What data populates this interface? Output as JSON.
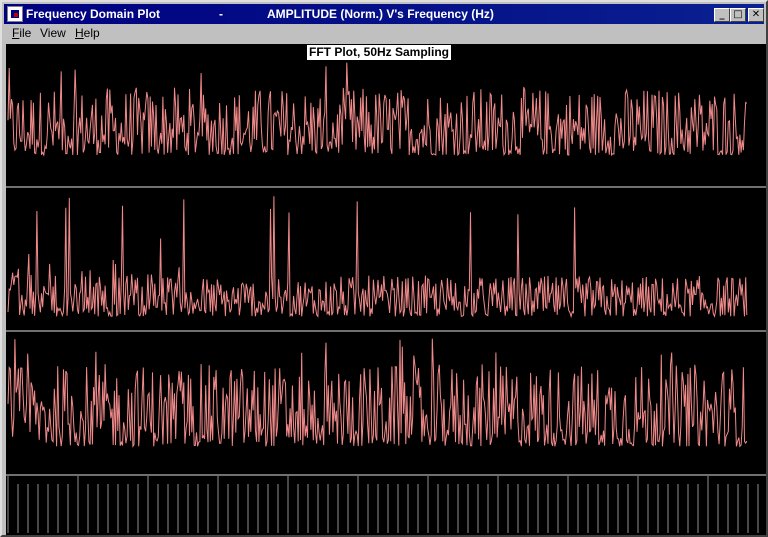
{
  "window": {
    "app_title": "Frequency Domain Plot",
    "separator": "-",
    "plot_caption": "AMPLITUDE (Norm.) V's Frequency (Hz)",
    "buttons": {
      "minimize": "_",
      "maximize": "□",
      "close": "✕"
    }
  },
  "menu": {
    "items": [
      {
        "label": "File",
        "accel": "F",
        "rest": "ile"
      },
      {
        "label": "View",
        "accel": "",
        "rest": "View"
      },
      {
        "label": "Help",
        "accel": "H",
        "rest": "elp"
      }
    ]
  },
  "plot": {
    "title": "FFT Plot, 50Hz Sampling",
    "colors": {
      "trace": "#f08a8a",
      "background": "#000000",
      "divider": "#e0e0e0",
      "ticks": "#909090"
    }
  },
  "chart_data": {
    "type": "line",
    "title": "FFT Plot, 50Hz Sampling",
    "xlabel": "Frequency (Hz)",
    "ylabel": "AMPLITUDE (Norm.)",
    "panels": 3,
    "series": [
      {
        "noise_level": 0.55,
        "baseline": 0.25
      },
      {
        "noise_level": 0.3,
        "baseline": 0.1
      },
      {
        "noise_level": 0.6,
        "baseline": 0.2
      }
    ]
  }
}
